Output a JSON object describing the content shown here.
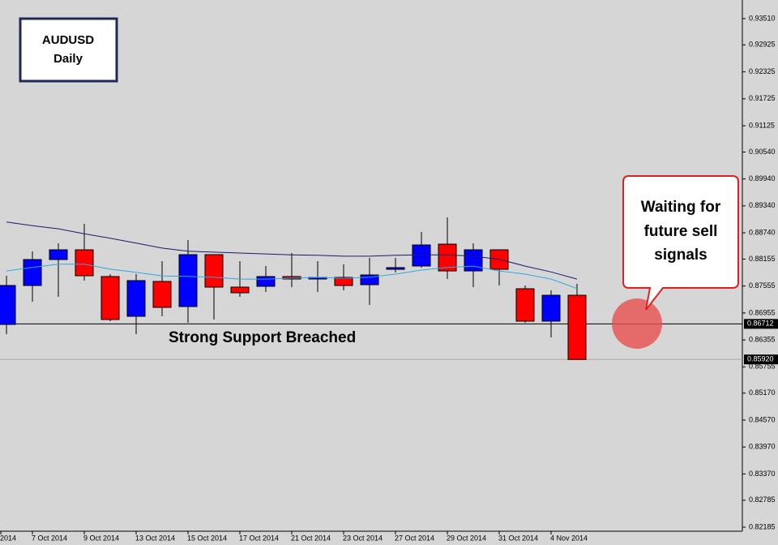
{
  "chart_data": {
    "type": "candlestick",
    "symbol": "AUDUSD",
    "timeframe": "Daily",
    "annotation": "Strong Support Breached",
    "callout": [
      "Waiting for",
      "future sell",
      "signals"
    ],
    "categories": [
      "2014",
      null,
      "7 Oct 2014",
      null,
      "9 Oct 2014",
      null,
      "13 Oct 2014",
      null,
      "15 Oct 2014",
      null,
      "17 Oct 2014",
      null,
      "21 Oct 2014",
      null,
      "23 Oct 2014",
      null,
      "27 Oct 2014",
      null,
      "29 Oct 2014",
      null,
      "31 Oct 2014",
      null,
      "4 Nov 2014",
      null
    ],
    "open": [
      null,
      0.867,
      0.87567,
      0.88145,
      0.88362,
      0.87766,
      0.86881,
      0.87657,
      0.87098,
      0.88254,
      0.87531,
      0.87549,
      0.87766,
      0.87712,
      0.87748,
      0.87585,
      0.87928,
      0.88001,
      0.88488,
      0.87892,
      0.88362,
      0.87495,
      0.86773,
      0.8735
    ],
    "high": [
      null,
      0.87784,
      0.88326,
      0.88506,
      0.8894,
      0.8782,
      0.8782,
      0.88109,
      0.88579,
      0.88254,
      0.88109,
      0.88001,
      0.8829,
      0.88109,
      0.88037,
      0.88181,
      0.88181,
      0.88759,
      0.89084,
      0.88506,
      0.88362,
      0.87567,
      0.87459,
      0.87603
    ],
    "low": [
      null,
      0.86483,
      0.87206,
      0.87314,
      0.87676,
      0.86773,
      0.86483,
      0.86881,
      0.86736,
      0.86809,
      0.87314,
      0.87423,
      0.87531,
      0.87423,
      0.87459,
      0.87134,
      0.87856,
      0.87965,
      0.87712,
      0.87531,
      0.87567,
      0.86736,
      0.86411,
      0.8592
    ],
    "close": [
      null,
      0.87567,
      0.88145,
      0.88362,
      0.87784,
      0.86809,
      0.87676,
      0.8708,
      0.88254,
      0.87531,
      0.87405,
      0.87766,
      0.87712,
      0.87748,
      0.87567,
      0.87802,
      0.87965,
      0.8847,
      0.87892,
      0.88362,
      0.87928,
      0.86773,
      0.8735,
      0.8592
    ],
    "up_color": "#0000ff",
    "down_color": "#ff0000",
    "series": [
      {
        "color": "#1a1a6e",
        "values": [
          null,
          0.8898,
          0.889,
          0.8883,
          0.8872,
          0.8862,
          0.8851,
          0.884,
          0.8833,
          0.8831,
          0.8829,
          0.8827,
          0.8825,
          0.8824,
          0.8822,
          0.8822,
          0.8824,
          0.8825,
          0.8825,
          0.8822,
          0.8815,
          0.88,
          0.8787,
          0.8771
        ]
      },
      {
        "color": "#2fa8e0",
        "values": [
          null,
          0.8789,
          0.8797,
          0.8804,
          0.8804,
          0.8793,
          0.8786,
          0.8778,
          0.8777,
          0.8775,
          0.8771,
          0.8771,
          0.8773,
          0.8775,
          0.8773,
          0.8775,
          0.8782,
          0.8791,
          0.8797,
          0.88,
          0.8789,
          0.8782,
          0.8771,
          0.875
        ]
      }
    ],
    "price_markers": [
      {
        "value": 0.86712,
        "label": "0.86712",
        "color": "#000000"
      },
      {
        "value": 0.8592,
        "label": "0.85920",
        "color": "#a8a8a8"
      }
    ],
    "ylim": [
      0.82095,
      0.93925
    ],
    "yticks": [
      {
        "value": 0.9351,
        "label": "0.93510"
      },
      {
        "value": 0.92925,
        "label": "0.92925"
      },
      {
        "value": 0.92325,
        "label": "0.92325"
      },
      {
        "value": 0.91725,
        "label": "0.91725"
      },
      {
        "value": 0.91125,
        "label": "0.91125"
      },
      {
        "value": 0.9054,
        "label": "0.90540"
      },
      {
        "value": 0.8994,
        "label": "0.89940"
      },
      {
        "value": 0.8934,
        "label": "0.89340"
      },
      {
        "value": 0.8874,
        "label": "0.88740"
      },
      {
        "value": 0.88155,
        "label": "0.88155"
      },
      {
        "value": 0.87555,
        "label": "0.87555"
      },
      {
        "value": 0.86955,
        "label": "0.86955"
      },
      {
        "value": 0.86355,
        "label": "0.86355"
      },
      {
        "value": 0.85755,
        "label": "0.85755"
      },
      {
        "value": 0.8517,
        "label": "0.85170"
      },
      {
        "value": 0.8457,
        "label": "0.84570"
      },
      {
        "value": 0.8397,
        "label": "0.83970"
      },
      {
        "value": 0.8337,
        "label": "0.83370"
      },
      {
        "value": 0.82785,
        "label": "0.82785"
      },
      {
        "value": 0.82185,
        "label": "0.82185"
      }
    ]
  }
}
